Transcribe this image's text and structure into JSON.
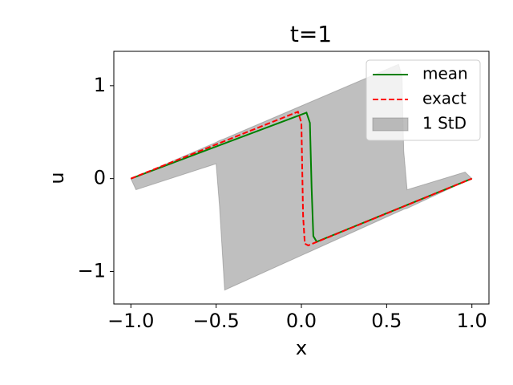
{
  "chart_data": {
    "type": "line",
    "title": "t=1",
    "x_label": "x",
    "y_label": "u",
    "xlim": [
      -1.1,
      1.1
    ],
    "ylim": [
      -1.35,
      1.37
    ],
    "xticks": [
      {
        "value": -1.0,
        "label": "−1.0"
      },
      {
        "value": -0.5,
        "label": "−0.5"
      },
      {
        "value": 0.0,
        "label": "0.0"
      },
      {
        "value": 0.5,
        "label": "0.5"
      },
      {
        "value": 1.0,
        "label": "1.0"
      }
    ],
    "yticks": [
      {
        "value": -1,
        "label": "−1"
      },
      0,
      1
    ],
    "grid": false,
    "legend": "upper right",
    "series": [
      {
        "name": "mean",
        "color": "#008000",
        "linestyle": "solid",
        "x": [
          -1,
          0.03,
          0.05,
          0.06,
          0.07,
          0.09,
          1
        ],
        "values": [
          0,
          0.71,
          0.6,
          -0.1,
          -0.62,
          -0.68,
          0
        ]
      },
      {
        "name": "exact",
        "color": "#ff0000",
        "linestyle": "dashed",
        "x": [
          -1,
          -0.02,
          0.0,
          0.01,
          0.02,
          0.04,
          1
        ],
        "values": [
          0,
          0.72,
          0.6,
          -0.4,
          -0.7,
          -0.72,
          0
        ]
      },
      {
        "name": "1 StD",
        "color": "#808080",
        "linestyle": "band",
        "x": [
          -1,
          -0.97,
          -0.5,
          -0.48,
          -0.45,
          0.57,
          0.59,
          0.6,
          0.62,
          0.96,
          1
        ],
        "lower": [
          0,
          -0.12,
          0.16,
          -0.3,
          -1.2,
          -0.355,
          -0.34,
          -0.33,
          -0.32,
          -0.03,
          0
        ],
        "upper": [
          0,
          0.02,
          0.39,
          0.41,
          0.43,
          1.23,
          1.1,
          0.3,
          -0.12,
          0.07,
          0
        ]
      }
    ]
  }
}
